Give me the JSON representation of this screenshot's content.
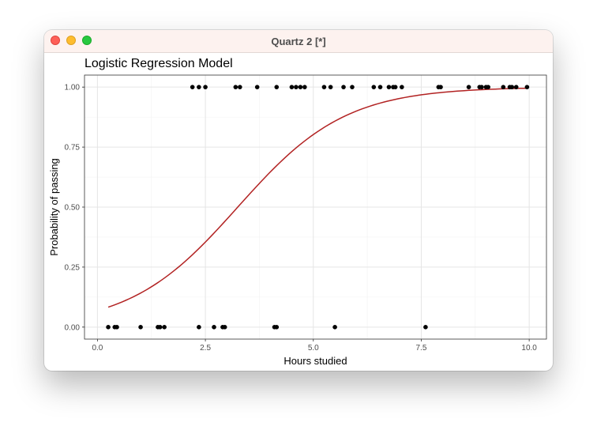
{
  "window": {
    "title": "Quartz 2 [*]"
  },
  "chart_data": {
    "type": "scatter",
    "title": "Logistic Regression Model",
    "xlabel": "Hours studied",
    "ylabel": "Probability of passing",
    "xlim": [
      -0.3,
      10.4
    ],
    "ylim": [
      -0.05,
      1.05
    ],
    "x_ticks": [
      0.0,
      2.5,
      5.0,
      7.5,
      10.0
    ],
    "x_tick_labels": [
      "0.0",
      "2.5",
      "5.0",
      "7.5",
      "10.0"
    ],
    "y_ticks": [
      0.0,
      0.25,
      0.5,
      0.75,
      1.0
    ],
    "y_tick_labels": [
      "0.00",
      "0.25",
      "0.50",
      "0.75",
      "1.00"
    ],
    "grid": true,
    "point_color": "#000000",
    "curve_color": "#b22222",
    "points": [
      {
        "x": 0.25,
        "y": 0
      },
      {
        "x": 0.4,
        "y": 0
      },
      {
        "x": 0.45,
        "y": 0
      },
      {
        "x": 1.0,
        "y": 0
      },
      {
        "x": 1.4,
        "y": 0
      },
      {
        "x": 1.45,
        "y": 0
      },
      {
        "x": 1.55,
        "y": 0
      },
      {
        "x": 2.35,
        "y": 0
      },
      {
        "x": 2.7,
        "y": 0
      },
      {
        "x": 2.9,
        "y": 0
      },
      {
        "x": 2.95,
        "y": 0
      },
      {
        "x": 4.1,
        "y": 0
      },
      {
        "x": 4.15,
        "y": 0
      },
      {
        "x": 5.5,
        "y": 0
      },
      {
        "x": 7.6,
        "y": 0
      },
      {
        "x": 2.2,
        "y": 1
      },
      {
        "x": 2.35,
        "y": 1
      },
      {
        "x": 2.5,
        "y": 1
      },
      {
        "x": 3.2,
        "y": 1
      },
      {
        "x": 3.3,
        "y": 1
      },
      {
        "x": 3.7,
        "y": 1
      },
      {
        "x": 4.15,
        "y": 1
      },
      {
        "x": 4.5,
        "y": 1
      },
      {
        "x": 4.6,
        "y": 1
      },
      {
        "x": 4.7,
        "y": 1
      },
      {
        "x": 4.8,
        "y": 1
      },
      {
        "x": 5.25,
        "y": 1
      },
      {
        "x": 5.4,
        "y": 1
      },
      {
        "x": 5.7,
        "y": 1
      },
      {
        "x": 5.9,
        "y": 1
      },
      {
        "x": 6.4,
        "y": 1
      },
      {
        "x": 6.55,
        "y": 1
      },
      {
        "x": 6.75,
        "y": 1
      },
      {
        "x": 6.85,
        "y": 1
      },
      {
        "x": 6.9,
        "y": 1
      },
      {
        "x": 7.05,
        "y": 1
      },
      {
        "x": 7.9,
        "y": 1
      },
      {
        "x": 7.95,
        "y": 1
      },
      {
        "x": 8.6,
        "y": 1
      },
      {
        "x": 8.85,
        "y": 1
      },
      {
        "x": 8.9,
        "y": 1
      },
      {
        "x": 9.0,
        "y": 1
      },
      {
        "x": 9.05,
        "y": 1
      },
      {
        "x": 9.4,
        "y": 1
      },
      {
        "x": 9.55,
        "y": 1
      },
      {
        "x": 9.6,
        "y": 1
      },
      {
        "x": 9.7,
        "y": 1
      },
      {
        "x": 9.95,
        "y": 1
      }
    ],
    "curve": {
      "model": "logistic",
      "intercept": -2.6,
      "slope": 0.8,
      "x_range": [
        0.25,
        9.95
      ]
    }
  }
}
